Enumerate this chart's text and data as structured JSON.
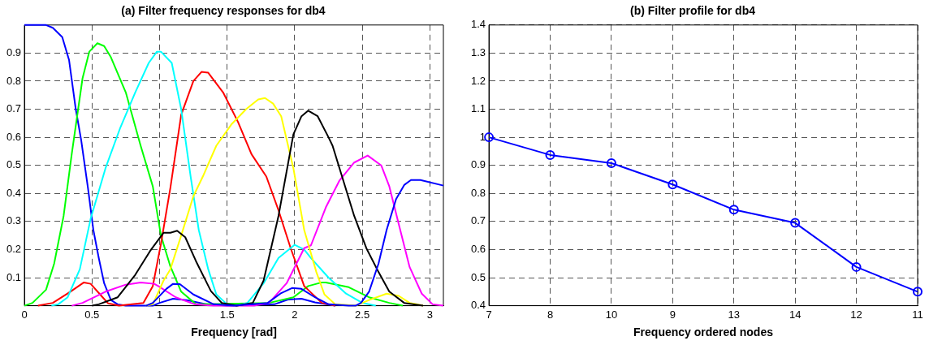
{
  "chart_data": [
    {
      "type": "line",
      "title": "(a) Filter frequency responses for db4",
      "xlabel": "Frequency [rad]",
      "xlim": [
        0,
        3.1
      ],
      "xticks": [
        0,
        0.5,
        1,
        1.5,
        2,
        2.5,
        3
      ],
      "ylim": [
        0,
        1
      ],
      "yticks": [
        0.1,
        0.2,
        0.3,
        0.4,
        0.5,
        0.6,
        0.7,
        0.8,
        0.9
      ],
      "grid": true,
      "line_style": "solid",
      "series": [
        {
          "color": "#0000ff",
          "x": [
            0,
            0.16,
            0.21,
            0.28,
            0.33,
            0.38,
            0.42,
            0.47,
            0.51,
            0.55,
            0.59,
            0.64,
            0.69,
            0.75,
            0.95,
            1.0,
            1.1,
            1.2,
            1.35,
            1.5,
            1.85,
            1.95,
            2.05,
            2.15,
            2.3
          ],
          "values": [
            1,
            1,
            0.99,
            0.957,
            0.876,
            0.7,
            0.59,
            0.42,
            0.27,
            0.17,
            0.08,
            0.02,
            0.005,
            0,
            0,
            0.01,
            0.025,
            0.02,
            0.005,
            0,
            0.005,
            0.022,
            0.025,
            0.012,
            0
          ]
        },
        {
          "color": "#00ff00",
          "x": [
            0,
            0.06,
            0.16,
            0.22,
            0.29,
            0.35,
            0.43,
            0.48,
            0.54,
            0.59,
            0.64,
            0.75,
            0.86,
            0.95,
            1.01,
            1.08,
            1.16,
            1.27,
            1.81,
            1.99,
            2.1,
            2.2,
            2.23,
            2.4,
            2.55,
            2.7,
            2.8
          ],
          "values": [
            0,
            0.01,
            0.057,
            0.15,
            0.32,
            0.54,
            0.81,
            0.905,
            0.935,
            0.925,
            0.885,
            0.76,
            0.57,
            0.425,
            0.25,
            0.14,
            0.05,
            0.005,
            0.01,
            0.03,
            0.07,
            0.083,
            0.083,
            0.066,
            0.03,
            0.01,
            0
          ]
        },
        {
          "color": "#ff0000",
          "x": [
            0.1,
            0.21,
            0.34,
            0.44,
            0.49,
            0.56,
            0.62,
            0.7,
            0.88,
            0.95,
            1.01,
            1.08,
            1.16,
            1.25,
            1.31,
            1.36,
            1.47,
            1.58,
            1.68,
            1.79,
            1.88,
            1.97,
            2.07,
            2.2,
            2.3
          ],
          "values": [
            0,
            0.01,
            0.05,
            0.083,
            0.078,
            0.04,
            0.008,
            0,
            0.01,
            0.07,
            0.22,
            0.42,
            0.68,
            0.8,
            0.833,
            0.83,
            0.76,
            0.655,
            0.54,
            0.46,
            0.34,
            0.205,
            0.07,
            0.01,
            0
          ]
        },
        {
          "color": "#00ffff",
          "x": [
            0.2,
            0.25,
            0.32,
            0.41,
            0.49,
            0.6,
            0.71,
            0.82,
            0.92,
            0.98,
            1.01,
            1.09,
            1.16,
            1.23,
            1.29,
            1.36,
            1.42,
            1.5,
            1.57,
            1.65,
            1.77,
            1.88,
            2.0,
            2.07,
            2.12,
            2.25,
            2.38,
            2.5,
            2.6
          ],
          "values": [
            0,
            0.005,
            0.03,
            0.13,
            0.31,
            0.49,
            0.635,
            0.76,
            0.865,
            0.905,
            0.905,
            0.865,
            0.7,
            0.46,
            0.27,
            0.13,
            0.04,
            0.005,
            0,
            0.01,
            0.08,
            0.17,
            0.217,
            0.2,
            0.17,
            0.1,
            0.043,
            0.01,
            0
          ]
        },
        {
          "color": "#ff00ff",
          "x": [
            0.35,
            0.43,
            0.6,
            0.75,
            0.86,
            0.96,
            0.99,
            1.12,
            1.26,
            1.4,
            1.7,
            1.81,
            1.94,
            2.07,
            2.12,
            2.23,
            2.33,
            2.44,
            2.54,
            2.64,
            2.7,
            2.77,
            2.85,
            2.94,
            3.02,
            3.1
          ],
          "values": [
            0,
            0.01,
            0.05,
            0.075,
            0.083,
            0.078,
            0.07,
            0.03,
            0.005,
            0,
            0,
            0.01,
            0.08,
            0.205,
            0.215,
            0.35,
            0.445,
            0.51,
            0.535,
            0.5,
            0.425,
            0.29,
            0.138,
            0.043,
            0.005,
            0
          ]
        },
        {
          "color": "#ffff00",
          "x": [
            0.9,
            0.95,
            1.03,
            1.08,
            1.16,
            1.25,
            1.32,
            1.42,
            1.53,
            1.64,
            1.73,
            1.78,
            1.84,
            1.9,
            1.99,
            2.07,
            2.16,
            2.22,
            2.3,
            2.45,
            2.55,
            2.68,
            2.77,
            2.85,
            2.95
          ],
          "values": [
            0,
            0.005,
            0.09,
            0.13,
            0.25,
            0.39,
            0.46,
            0.57,
            0.645,
            0.7,
            0.735,
            0.74,
            0.72,
            0.675,
            0.49,
            0.27,
            0.12,
            0.04,
            0.005,
            0,
            0.02,
            0.043,
            0.035,
            0.01,
            0
          ]
        },
        {
          "color": "#000000",
          "x": [
            0.5,
            0.55,
            0.69,
            0.82,
            0.93,
            1.03,
            1.08,
            1.13,
            1.19,
            1.27,
            1.38,
            1.46,
            1.57,
            1.69,
            1.77,
            1.88,
            1.99,
            2.05,
            2.1,
            2.17,
            2.25,
            2.28,
            2.36,
            2.44,
            2.53,
            2.62,
            2.7,
            2.81,
            2.95
          ],
          "values": [
            0,
            0.005,
            0.03,
            0.11,
            0.195,
            0.26,
            0.26,
            0.267,
            0.244,
            0.158,
            0.052,
            0.01,
            0,
            0.01,
            0.09,
            0.32,
            0.61,
            0.675,
            0.695,
            0.675,
            0.6,
            0.57,
            0.445,
            0.32,
            0.205,
            0.12,
            0.05,
            0.01,
            0
          ]
        },
        {
          "color": "#0000ff",
          "x": [
            0.9,
            0.95,
            1.05,
            1.1,
            1.15,
            1.25,
            1.4,
            1.55,
            1.8,
            1.9,
            1.98,
            2.05,
            2.15,
            2.25,
            2.4,
            2.45,
            2.49,
            2.55,
            2.62,
            2.68,
            2.75,
            2.81,
            2.86,
            2.93,
            3.1
          ],
          "values": [
            0,
            0.01,
            0.06,
            0.078,
            0.077,
            0.04,
            0.005,
            0,
            0.01,
            0.045,
            0.063,
            0.06,
            0.03,
            0.005,
            0,
            0,
            0.01,
            0.05,
            0.15,
            0.27,
            0.38,
            0.43,
            0.448,
            0.448,
            0.428
          ]
        }
      ]
    },
    {
      "type": "line",
      "title": "(b) Filter profile for db4",
      "xlabel": "Frequency ordered nodes",
      "categories": [
        "7",
        "8",
        "10",
        "9",
        "13",
        "14",
        "12",
        "11"
      ],
      "ylim": [
        0.4,
        1.4
      ],
      "yticks": [
        0.4,
        0.5,
        0.6,
        0.7,
        0.8,
        0.9,
        1,
        1.1,
        1.2,
        1.3,
        1.4
      ],
      "grid": true,
      "marker": "circle",
      "line_style": "solid",
      "series": [
        {
          "color": "#0000ff",
          "values": [
            1,
            0.937,
            0.908,
            0.832,
            0.742,
            0.695,
            0.538,
            0.45
          ]
        }
      ]
    }
  ]
}
